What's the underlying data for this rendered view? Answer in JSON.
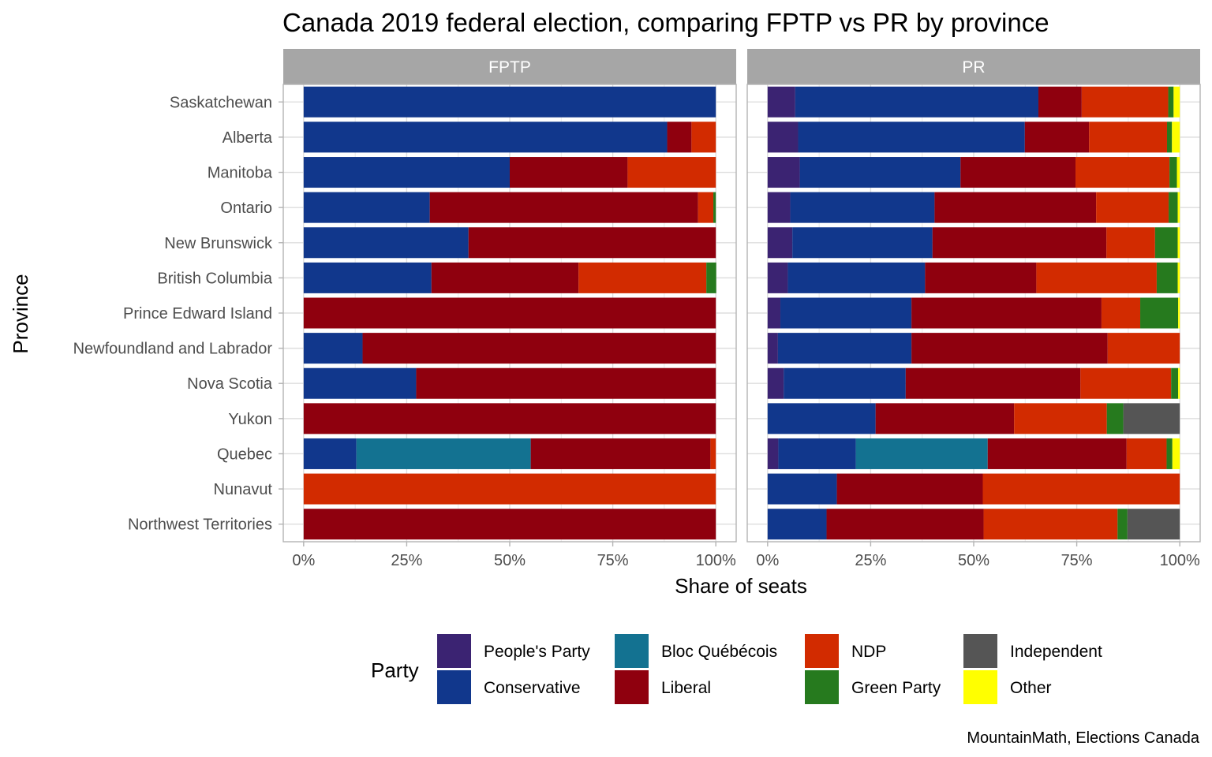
{
  "chart_data": {
    "type": "bar",
    "orientation": "horizontal",
    "stacked": true,
    "title": "Canada 2019 federal election, comparing FPTP vs PR by province",
    "xlabel": "Share of seats",
    "ylabel": "Province",
    "caption": "MountainMath, Elections Canada",
    "xlim": [
      0,
      1
    ],
    "xticks": [
      "0%",
      "25%",
      "50%",
      "75%",
      "100%"
    ],
    "grid": true,
    "legend_title": "Party",
    "legend_position": "bottom",
    "categories": [
      "Saskatchewan",
      "Alberta",
      "Manitoba",
      "Ontario",
      "New Brunswick",
      "British Columbia",
      "Prince Edward Island",
      "Newfoundland and Labrador",
      "Nova Scotia",
      "Yukon",
      "Quebec",
      "Nunavut",
      "Northwest Territories"
    ],
    "parties": [
      {
        "name": "People's Party",
        "color": "#3b2372"
      },
      {
        "name": "Conservative",
        "color": "#11378c"
      },
      {
        "name": "Bloc Québécois",
        "color": "#137291"
      },
      {
        "name": "Liberal",
        "color": "#8f000e"
      },
      {
        "name": "NDP",
        "color": "#d22b00"
      },
      {
        "name": "Green Party",
        "color": "#267a1e"
      },
      {
        "name": "Independent",
        "color": "#555555"
      },
      {
        "name": "Other",
        "color": "#ffff00"
      }
    ],
    "panels": [
      {
        "name": "FPTP",
        "data": {
          "Saskatchewan": {
            "Conservative": 1.0
          },
          "Alberta": {
            "Conservative": 0.882,
            "Liberal": 0.059,
            "NDP": 0.059
          },
          "Manitoba": {
            "Conservative": 0.5,
            "Liberal": 0.286,
            "NDP": 0.214
          },
          "Ontario": {
            "Conservative": 0.306,
            "Liberal": 0.651,
            "NDP": 0.037,
            "Green Party": 0.006
          },
          "New Brunswick": {
            "Conservative": 0.4,
            "Liberal": 0.6
          },
          "British Columbia": {
            "Conservative": 0.31,
            "Liberal": 0.357,
            "NDP": 0.31,
            "Green Party": 0.024
          },
          "Prince Edward Island": {
            "Liberal": 1.0
          },
          "Newfoundland and Labrador": {
            "Conservative": 0.143,
            "Liberal": 0.857
          },
          "Nova Scotia": {
            "Conservative": 0.273,
            "Liberal": 0.727
          },
          "Yukon": {
            "Liberal": 1.0
          },
          "Quebec": {
            "Conservative": 0.128,
            "Bloc Québécois": 0.423,
            "Liberal": 0.436,
            "NDP": 0.013
          },
          "Nunavut": {
            "NDP": 1.0
          },
          "Northwest Territories": {
            "Liberal": 1.0
          }
        }
      },
      {
        "name": "PR",
        "data": {
          "Saskatchewan": {
            "People's Party": 0.067,
            "Conservative": 0.59,
            "Liberal": 0.105,
            "NDP": 0.21,
            "Green Party": 0.013,
            "Other": 0.015
          },
          "Alberta": {
            "People's Party": 0.074,
            "Conservative": 0.55,
            "Liberal": 0.156,
            "NDP": 0.189,
            "Green Party": 0.012,
            "Other": 0.019
          },
          "Manitoba": {
            "People's Party": 0.078,
            "Conservative": 0.39,
            "Liberal": 0.279,
            "NDP": 0.228,
            "Green Party": 0.018,
            "Other": 0.007
          },
          "Ontario": {
            "People's Party": 0.055,
            "Conservative": 0.35,
            "Liberal": 0.392,
            "NDP": 0.176,
            "Green Party": 0.022,
            "Other": 0.005
          },
          "New Brunswick": {
            "People's Party": 0.06,
            "Conservative": 0.34,
            "Liberal": 0.422,
            "NDP": 0.118,
            "Green Party": 0.055,
            "Other": 0.005
          },
          "British Columbia": {
            "People's Party": 0.049,
            "Conservative": 0.333,
            "Liberal": 0.27,
            "NDP": 0.292,
            "Green Party": 0.051,
            "Other": 0.005
          },
          "Prince Edward Island": {
            "People's Party": 0.031,
            "Conservative": 0.318,
            "Liberal": 0.461,
            "NDP": 0.094,
            "Green Party": 0.092,
            "Other": 0.004
          },
          "Newfoundland and Labrador": {
            "People's Party": 0.025,
            "Conservative": 0.324,
            "Liberal": 0.476,
            "NDP": 0.175
          },
          "Nova Scotia": {
            "People's Party": 0.039,
            "Conservative": 0.296,
            "Liberal": 0.424,
            "NDP": 0.22,
            "Green Party": 0.017,
            "Other": 0.004
          },
          "Yukon": {
            "Conservative": 0.262,
            "Liberal": 0.336,
            "NDP": 0.225,
            "Green Party": 0.04,
            "Independent": 0.137
          },
          "Quebec": {
            "People's Party": 0.026,
            "Conservative": 0.188,
            "Bloc Québécois": 0.32,
            "Liberal": 0.337,
            "NDP": 0.097,
            "Green Party": 0.014,
            "Other": 0.018
          },
          "Nunavut": {
            "Conservative": 0.168,
            "Liberal": 0.354,
            "NDP": 0.478
          },
          "Northwest Territories": {
            "Conservative": 0.143,
            "Liberal": 0.381,
            "NDP": 0.325,
            "Green Party": 0.024,
            "Independent": 0.127
          }
        }
      }
    ]
  }
}
